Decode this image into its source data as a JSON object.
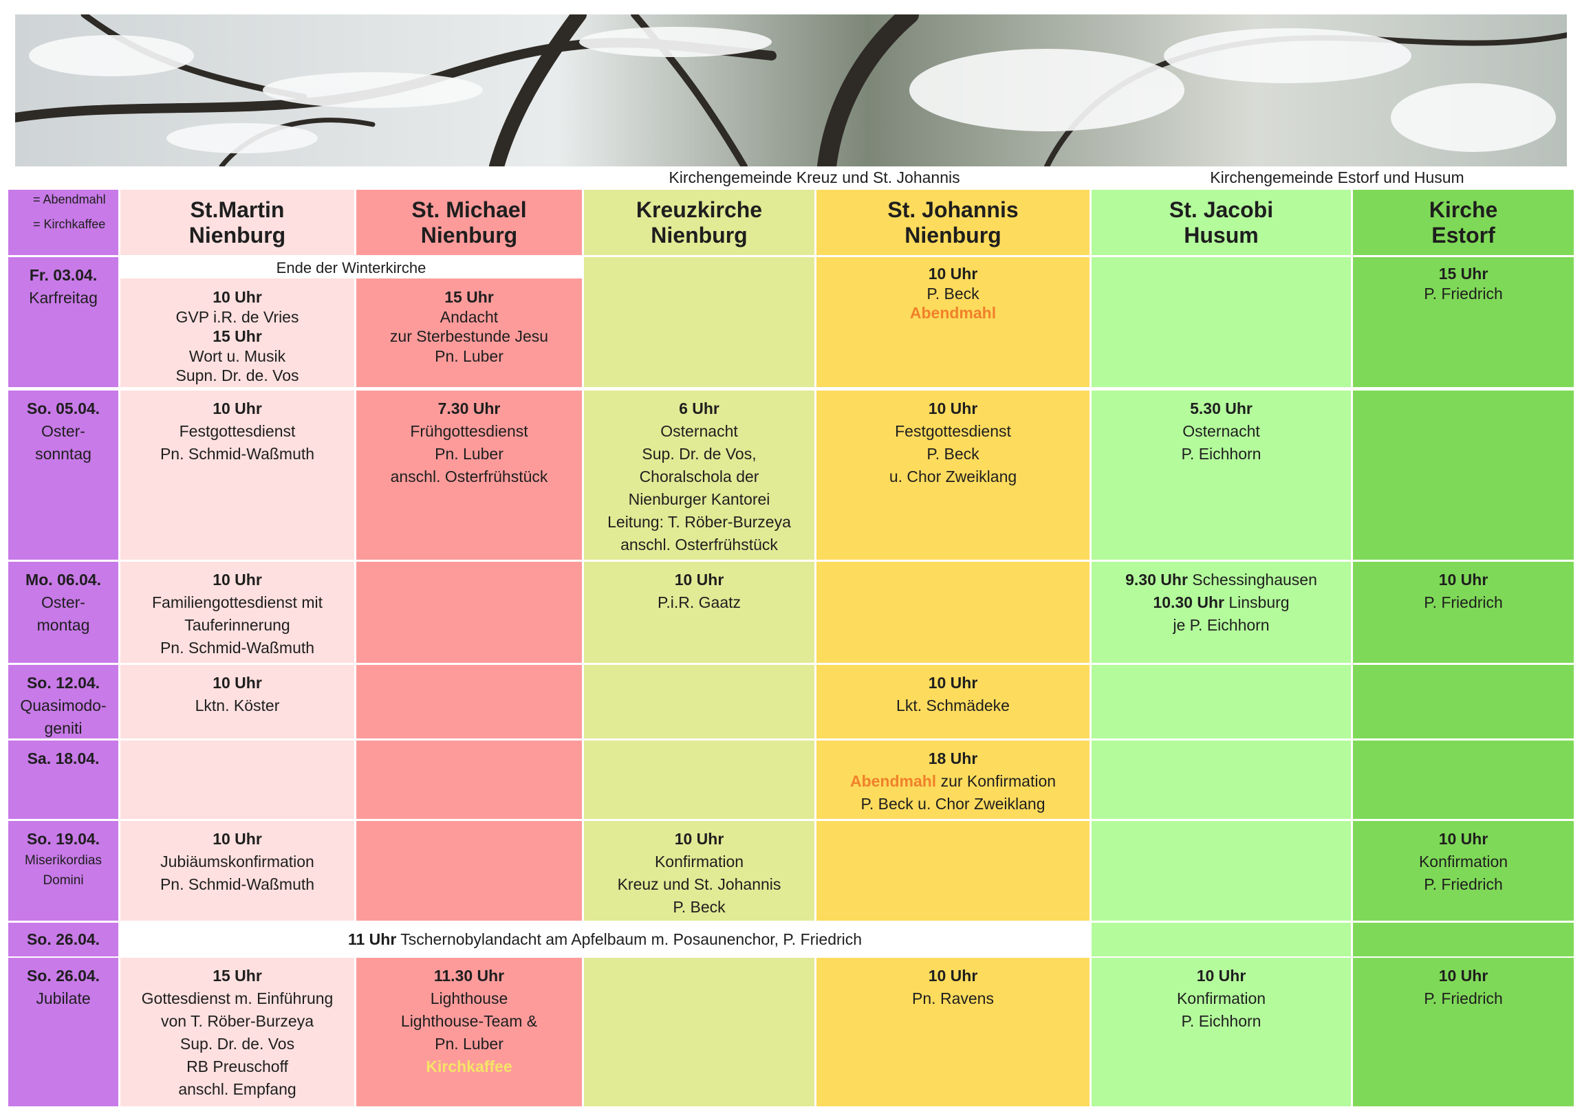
{
  "groups": [
    "Kirchengemeinde Kreuz und St. Johannis",
    "Kirchengemeinde Estorf und Husum"
  ],
  "legend": [
    "= Abendmahl",
    "= Kirchkaffee"
  ],
  "day_color": "#c87ae8",
  "columns": [
    {
      "name": [
        "St.Martin",
        "Nienburg"
      ],
      "color": "#fde0df"
    },
    {
      "name": [
        "St. Michael",
        "Nienburg"
      ],
      "color": "#fd9b9b"
    },
    {
      "name": [
        "Kreuzkirche",
        "Nienburg"
      ],
      "color": "#e1ea95"
    },
    {
      "name": [
        "St. Johannis",
        "Nienburg"
      ],
      "color": "#fddb5d"
    },
    {
      "name": [
        "St. Jacobi",
        "Husum"
      ],
      "color": "#b4fb9c"
    },
    {
      "name": [
        "Kirche",
        "Estorf"
      ],
      "color": "#7fd958"
    }
  ],
  "rows": [
    {
      "date": "Fr. 03.04.",
      "day": [
        "Karfreitag"
      ],
      "banner": {
        "text": "Ende der Winterkirche",
        "span": 2
      },
      "cells": [
        [
          [
            {
              "text": "10 Uhr",
              "bold": true
            }
          ],
          [
            "GVP i.R. de Vries"
          ],
          [
            {
              "text": "15 Uhr",
              "bold": true
            }
          ],
          [
            "Wort u. Musik"
          ],
          [
            "Supn. Dr. de. Vos"
          ]
        ],
        [
          [
            {
              "text": "15 Uhr",
              "bold": true
            }
          ],
          [
            "Andacht"
          ],
          [
            "zur Sterbestunde Jesu"
          ],
          [
            "Pn. Luber"
          ]
        ],
        [],
        [
          [
            {
              "text": "10 Uhr",
              "bold": true
            }
          ],
          [
            "P. Beck"
          ],
          [
            {
              "text": "Abendmahl",
              "bold": true,
              "color": "#f0812a"
            }
          ]
        ],
        [],
        [
          [
            {
              "text": "15 Uhr",
              "bold": true
            }
          ],
          [
            "P. Friedrich"
          ]
        ]
      ]
    },
    {
      "date": "So. 05.04.",
      "day": [
        "Oster-",
        "sonntag"
      ],
      "cells": [
        [
          [
            {
              "text": "10 Uhr",
              "bold": true
            }
          ],
          [
            "Festgottesdienst"
          ],
          [
            "Pn. Schmid-Waßmuth"
          ]
        ],
        [
          [
            {
              "text": "7.30 Uhr",
              "bold": true
            }
          ],
          [
            "Frühgottesdienst"
          ],
          [
            "Pn. Luber"
          ],
          [
            "anschl. Osterfrühstück"
          ]
        ],
        [
          [
            {
              "text": "6 Uhr",
              "bold": true
            }
          ],
          [
            "Osternacht"
          ],
          [
            "Sup. Dr. de Vos,"
          ],
          [
            "Choralschola der"
          ],
          [
            "Nienburger Kantorei"
          ],
          [
            "Leitung: T. Röber-Burzeya"
          ],
          [
            "anschl. Osterfrühstück"
          ]
        ],
        [
          [
            {
              "text": "10 Uhr",
              "bold": true
            }
          ],
          [
            "Festgottesdienst"
          ],
          [
            "P. Beck"
          ],
          [
            "u. Chor Zweiklang"
          ]
        ],
        [
          [
            {
              "text": "5.30 Uhr",
              "bold": true
            }
          ],
          [
            "Osternacht"
          ],
          [
            "P. Eichhorn"
          ]
        ],
        []
      ]
    },
    {
      "date": "Mo. 06.04.",
      "day": [
        "Oster-",
        "montag"
      ],
      "cells": [
        [
          [
            {
              "text": "10 Uhr",
              "bold": true
            }
          ],
          [
            "Familiengottesdienst mit"
          ],
          [
            "Tauferinnerung"
          ],
          [
            "Pn. Schmid-Waßmuth"
          ]
        ],
        [],
        [
          [
            {
              "text": "10 Uhr",
              "bold": true
            }
          ],
          [
            "P.i.R. Gaatz"
          ]
        ],
        [],
        [
          [
            {
              "text": "9.30 Uhr",
              "bold": true
            },
            " Schessinghausen"
          ],
          [
            {
              "text": "10.30 Uhr",
              "bold": true
            },
            " Linsburg"
          ],
          [
            "je P. Eichhorn"
          ]
        ],
        [
          [
            {
              "text": "10 Uhr",
              "bold": true
            }
          ],
          [
            "P. Friedrich"
          ]
        ]
      ]
    },
    {
      "date": "So. 12.04.",
      "day": [
        "Quasimodo-",
        "geniti"
      ],
      "cells": [
        [
          [
            {
              "text": "10 Uhr",
              "bold": true
            }
          ],
          [
            "Lktn. Köster"
          ]
        ],
        [],
        [],
        [
          [
            {
              "text": "10 Uhr",
              "bold": true
            }
          ],
          [
            "Lkt. Schmädeke"
          ]
        ],
        [],
        []
      ]
    },
    {
      "date": "Sa. 18.04.",
      "day": [],
      "cells": [
        [],
        [],
        [],
        [
          [
            {
              "text": "18 Uhr",
              "bold": true
            }
          ],
          [
            {
              "text": "Abendmahl",
              "bold": true,
              "color": "#f0812a"
            },
            " zur Konfirmation"
          ],
          [
            "P. Beck u. Chor Zweiklang"
          ]
        ],
        [],
        []
      ]
    },
    {
      "date": "So. 19.04.",
      "day": [
        "Miserikordias",
        "Domini"
      ],
      "cells": [
        [
          [
            {
              "text": "10 Uhr",
              "bold": true
            }
          ],
          [
            "Jubiäumskonfirmation"
          ],
          [
            "Pn. Schmid-Waßmuth"
          ]
        ],
        [],
        [
          [
            {
              "text": "10 Uhr",
              "bold": true
            }
          ],
          [
            "Konfirmation"
          ],
          [
            "Kreuz und St. Johannis"
          ],
          [
            "P. Beck"
          ]
        ],
        [],
        [],
        [
          [
            {
              "text": "10 Uhr",
              "bold": true
            }
          ],
          [
            "Konfirmation"
          ],
          [
            "P. Friedrich"
          ]
        ]
      ]
    },
    {
      "date": "So. 26.04.",
      "day": [],
      "spanned": {
        "span": 4,
        "line": [
          {
            "text": "11 Uhr",
            "bold": true
          },
          " Tschernobylandacht am Apfelbaum m. Posaunenchor, P. Friedrich"
        ]
      },
      "cells": [
        [],
        []
      ]
    },
    {
      "date": "So. 26.04.",
      "day": [
        "Jubilate"
      ],
      "cells": [
        [
          [
            {
              "text": "15 Uhr",
              "bold": true
            }
          ],
          [
            "Gottesdienst m. Einführung"
          ],
          [
            "von T. Röber-Burzeya"
          ],
          [
            "Sup. Dr. de. Vos"
          ],
          [
            "RB Preuschoff"
          ],
          [
            "anschl. Empfang"
          ]
        ],
        [
          [
            {
              "text": "11.30 Uhr",
              "bold": true
            }
          ],
          [
            "Lighthouse"
          ],
          [
            "Lighthouse-Team &"
          ],
          [
            "Pn. Luber"
          ],
          [
            {
              "text": "Kirchkaffee",
              "bold": true,
              "color": "#f5e467"
            }
          ]
        ],
        [],
        [
          [
            {
              "text": "10 Uhr",
              "bold": true
            }
          ],
          [
            "Pn. Ravens"
          ]
        ],
        [
          [
            {
              "text": "10 Uhr",
              "bold": true
            }
          ],
          [
            "Konfirmation"
          ],
          [
            "P. Eichhorn"
          ]
        ],
        [
          [
            {
              "text": "10 Uhr",
              "bold": true
            }
          ],
          [
            "P. Friedrich"
          ]
        ]
      ]
    }
  ]
}
